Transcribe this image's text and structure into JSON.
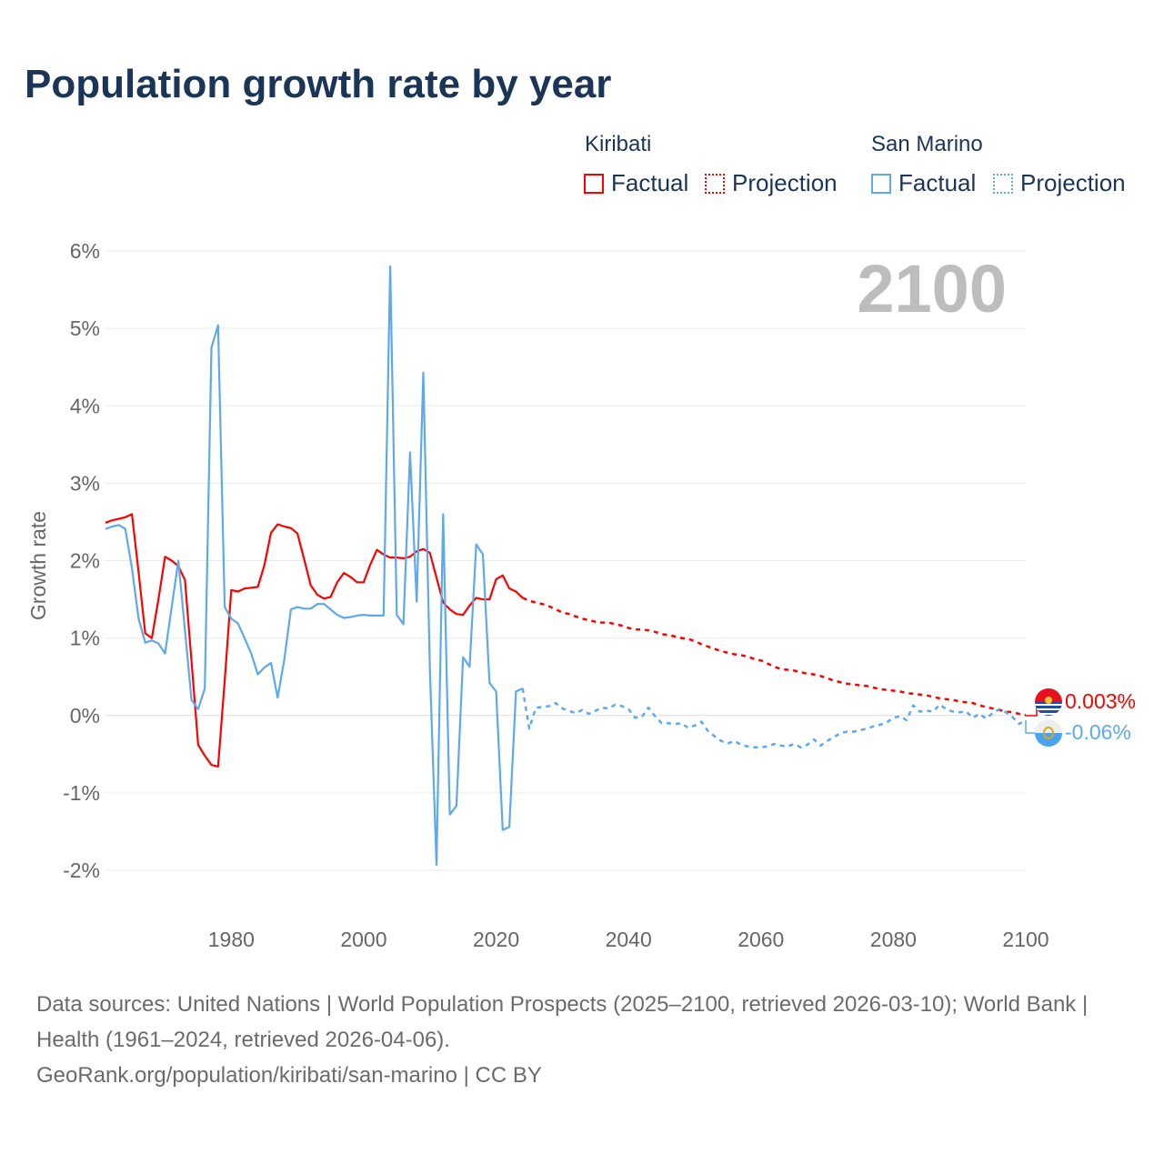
{
  "title": "Population growth rate by year",
  "legend": {
    "groups": [
      {
        "name": "Kiribati",
        "color": "#ff0000",
        "factual": "Factual",
        "projection": "Projection"
      },
      {
        "name": "San Marino",
        "color": "#5ea8ec",
        "factual": "Factual",
        "projection": "Projection"
      }
    ]
  },
  "year_display": "2100",
  "end_labels": {
    "kiribati": "0.003%",
    "san_marino": "-0.06%"
  },
  "footer": {
    "sources": "Data sources: United Nations | World Population Prospects (2025–2100, retrieved 2026-03-10); World Bank | Health (1961–2024, retrieved 2026-04-06).",
    "credit": "GeoRank.org/population/kiribati/san-marino | CC BY"
  },
  "chart_data": {
    "type": "line",
    "title": "Population growth rate by year",
    "xlabel": "",
    "ylabel": "Growth rate",
    "xlim": [
      1961,
      2100
    ],
    "ylim": [
      -2,
      6
    ],
    "x_ticks": [
      "1980",
      "2000",
      "2020",
      "2040",
      "2060",
      "2080",
      "2100"
    ],
    "y_ticks": [
      "6%",
      "5%",
      "4%",
      "3%",
      "2%",
      "1%",
      "0%",
      "-1%",
      "-2%"
    ],
    "grid": true,
    "legend_position": "top-right",
    "series": [
      {
        "name": "Kiribati",
        "kind": "Factual",
        "color": "#ff0000",
        "dashed": false,
        "start_year": 1961,
        "values": [
          2.49,
          2.52,
          2.54,
          2.56,
          2.6,
          1.85,
          1.06,
          1.0,
          1.5,
          2.05,
          2.0,
          1.93,
          1.75,
          0.7,
          -0.38,
          -0.52,
          -0.64,
          -0.66,
          0.45,
          1.62,
          1.6,
          1.64,
          1.65,
          1.66,
          1.94,
          2.36,
          2.47,
          2.44,
          2.42,
          2.35,
          2.02,
          1.68,
          1.56,
          1.51,
          1.53,
          1.72,
          1.84,
          1.79,
          1.72,
          1.72,
          1.95,
          2.14,
          2.08,
          2.04,
          2.04,
          2.03,
          2.05,
          2.12,
          2.15,
          2.1,
          1.78,
          1.46,
          1.37,
          1.31,
          1.3,
          1.42,
          1.52,
          1.5,
          1.5,
          1.76,
          1.81,
          1.64,
          1.6,
          1.52
        ]
      },
      {
        "name": "Kiribati",
        "kind": "Projection",
        "color": "#ff0000",
        "dashed": true,
        "start_year": 2024,
        "values": [
          1.52,
          1.48,
          1.46,
          1.44,
          1.41,
          1.37,
          1.33,
          1.31,
          1.28,
          1.25,
          1.23,
          1.21,
          1.2,
          1.2,
          1.18,
          1.16,
          1.13,
          1.11,
          1.11,
          1.1,
          1.08,
          1.05,
          1.04,
          1.02,
          1.0,
          0.99,
          0.96,
          0.92,
          0.89,
          0.86,
          0.83,
          0.81,
          0.79,
          0.78,
          0.76,
          0.73,
          0.71,
          0.67,
          0.63,
          0.6,
          0.59,
          0.58,
          0.56,
          0.54,
          0.53,
          0.51,
          0.48,
          0.45,
          0.43,
          0.41,
          0.4,
          0.39,
          0.38,
          0.36,
          0.34,
          0.33,
          0.32,
          0.31,
          0.29,
          0.28,
          0.27,
          0.26,
          0.24,
          0.22,
          0.21,
          0.2,
          0.18,
          0.17,
          0.16,
          0.13,
          0.11,
          0.09,
          0.07,
          0.05,
          0.04,
          0.02,
          0.003
        ]
      },
      {
        "name": "San Marino",
        "kind": "Factual",
        "color": "#5ea8ec",
        "dashed": false,
        "start_year": 1961,
        "values": [
          2.41,
          2.44,
          2.46,
          2.41,
          1.9,
          1.25,
          0.94,
          0.97,
          0.93,
          0.8,
          1.4,
          2.0,
          1.1,
          0.2,
          0.08,
          0.35,
          4.75,
          5.04,
          1.4,
          1.25,
          1.19,
          1.0,
          0.8,
          0.53,
          0.62,
          0.68,
          0.23,
          0.72,
          1.37,
          1.4,
          1.38,
          1.38,
          1.44,
          1.44,
          1.37,
          1.3,
          1.26,
          1.27,
          1.29,
          1.3,
          1.29,
          1.29,
          1.29,
          5.8,
          1.3,
          1.18,
          3.4,
          1.47,
          4.43,
          0.6,
          -1.93,
          2.6,
          -1.28,
          -1.17,
          0.75,
          0.63,
          2.21,
          2.08,
          0.42,
          0.31,
          -1.48,
          -1.44,
          0.31,
          0.35
        ]
      },
      {
        "name": "San Marino",
        "kind": "Projection",
        "color": "#5ea8ec",
        "dashed": true,
        "start_year": 2024,
        "values": [
          0.35,
          -0.17,
          0.1,
          0.11,
          0.12,
          0.16,
          0.09,
          0.06,
          0.03,
          0.07,
          0.02,
          0.06,
          0.1,
          0.09,
          0.14,
          0.12,
          0.08,
          -0.03,
          -0.02,
          0.1,
          -0.01,
          -0.1,
          -0.1,
          -0.11,
          -0.1,
          -0.16,
          -0.13,
          -0.08,
          -0.2,
          -0.27,
          -0.33,
          -0.36,
          -0.33,
          -0.38,
          -0.4,
          -0.41,
          -0.41,
          -0.4,
          -0.37,
          -0.39,
          -0.4,
          -0.37,
          -0.41,
          -0.38,
          -0.31,
          -0.39,
          -0.33,
          -0.28,
          -0.23,
          -0.21,
          -0.21,
          -0.19,
          -0.17,
          -0.14,
          -0.12,
          -0.09,
          -0.03,
          -0.01,
          -0.06,
          0.13,
          0.05,
          0.06,
          0.05,
          0.14,
          0.08,
          0.05,
          0.04,
          0.05,
          -0.03,
          0.02,
          -0.04,
          0.03,
          0.08,
          0.04,
          -0.02,
          -0.11,
          -0.06
        ]
      }
    ]
  }
}
